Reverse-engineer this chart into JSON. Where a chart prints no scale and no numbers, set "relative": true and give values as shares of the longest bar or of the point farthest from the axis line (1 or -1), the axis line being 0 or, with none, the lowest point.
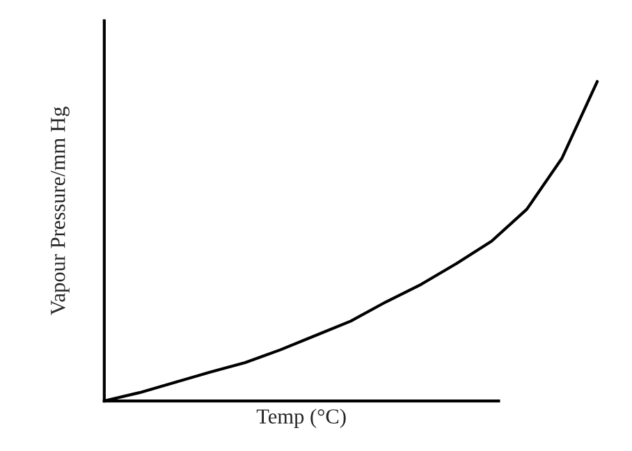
{
  "chart_data": {
    "type": "line",
    "relative": true,
    "xlabel": "Temp (°C)",
    "ylabel": "Vapour Pressure/mm Hg",
    "categories": [
      null,
      null,
      null,
      null,
      null,
      null,
      null,
      null,
      null,
      null,
      null,
      null,
      null,
      null,
      null
    ],
    "series": [
      {
        "color": "#000000",
        "values": [
          0,
          0.026,
          0.058,
          0.09,
          0.12,
          0.16,
          0.205,
          0.25,
          0.31,
          0.365,
          0.43,
          0.5,
          0.6,
          0.76,
          1.0
        ]
      }
    ],
    "tick_labels": false,
    "legend": false
  }
}
